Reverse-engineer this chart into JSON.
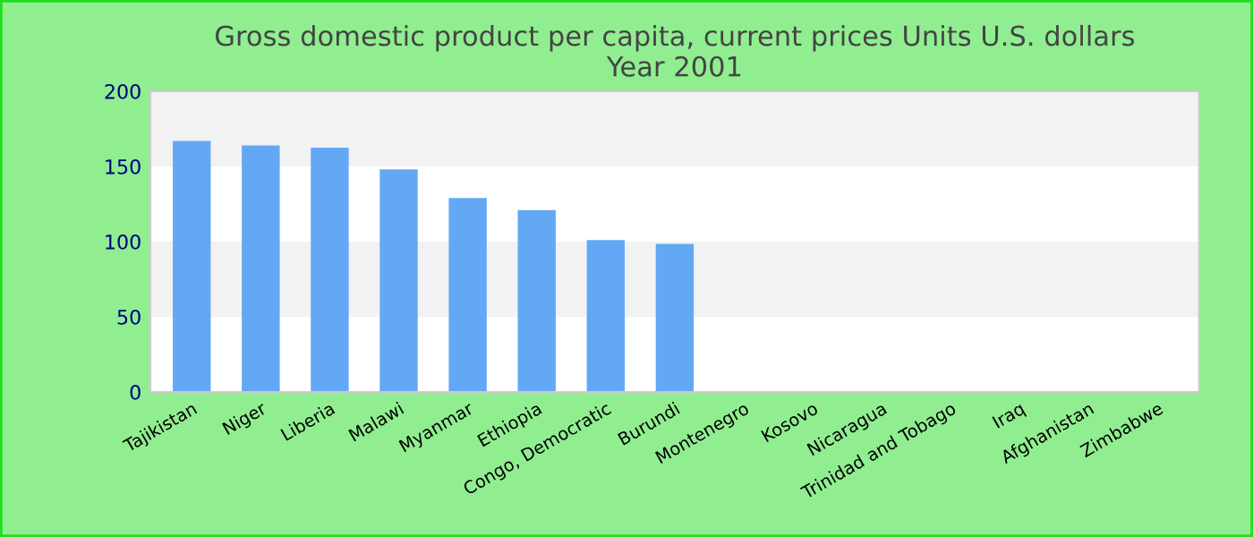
{
  "chart_data": {
    "type": "bar",
    "title": "Gross domestic product per capita, current prices Units U.S. dollars\nYear 2001",
    "categories": [
      "Tajikistan",
      "Niger",
      "Liberia",
      "Malawi",
      "Myanmar",
      "Ethiopia",
      "Congo, Democratic",
      "Burundi",
      "Montenegro",
      "Kosovo",
      "Nicaragua",
      "Trinidad and Tobago",
      "Iraq",
      "Afghanistan",
      "Zimbabwe"
    ],
    "values": [
      167,
      164,
      162.5,
      148,
      129,
      121,
      101,
      98.5,
      null,
      null,
      null,
      null,
      null,
      null,
      null
    ],
    "color": "#63a8f5",
    "ylim": [
      0,
      200
    ],
    "yticks": [
      0,
      50,
      100,
      150,
      200
    ],
    "bands": [
      {
        "axis": "y",
        "from": 50,
        "to": 100,
        "color": "#f2f2f2"
      },
      {
        "axis": "y",
        "from": 150,
        "to": 200,
        "color": "#f2f2f2"
      }
    ],
    "grid": false,
    "legend": false
  }
}
